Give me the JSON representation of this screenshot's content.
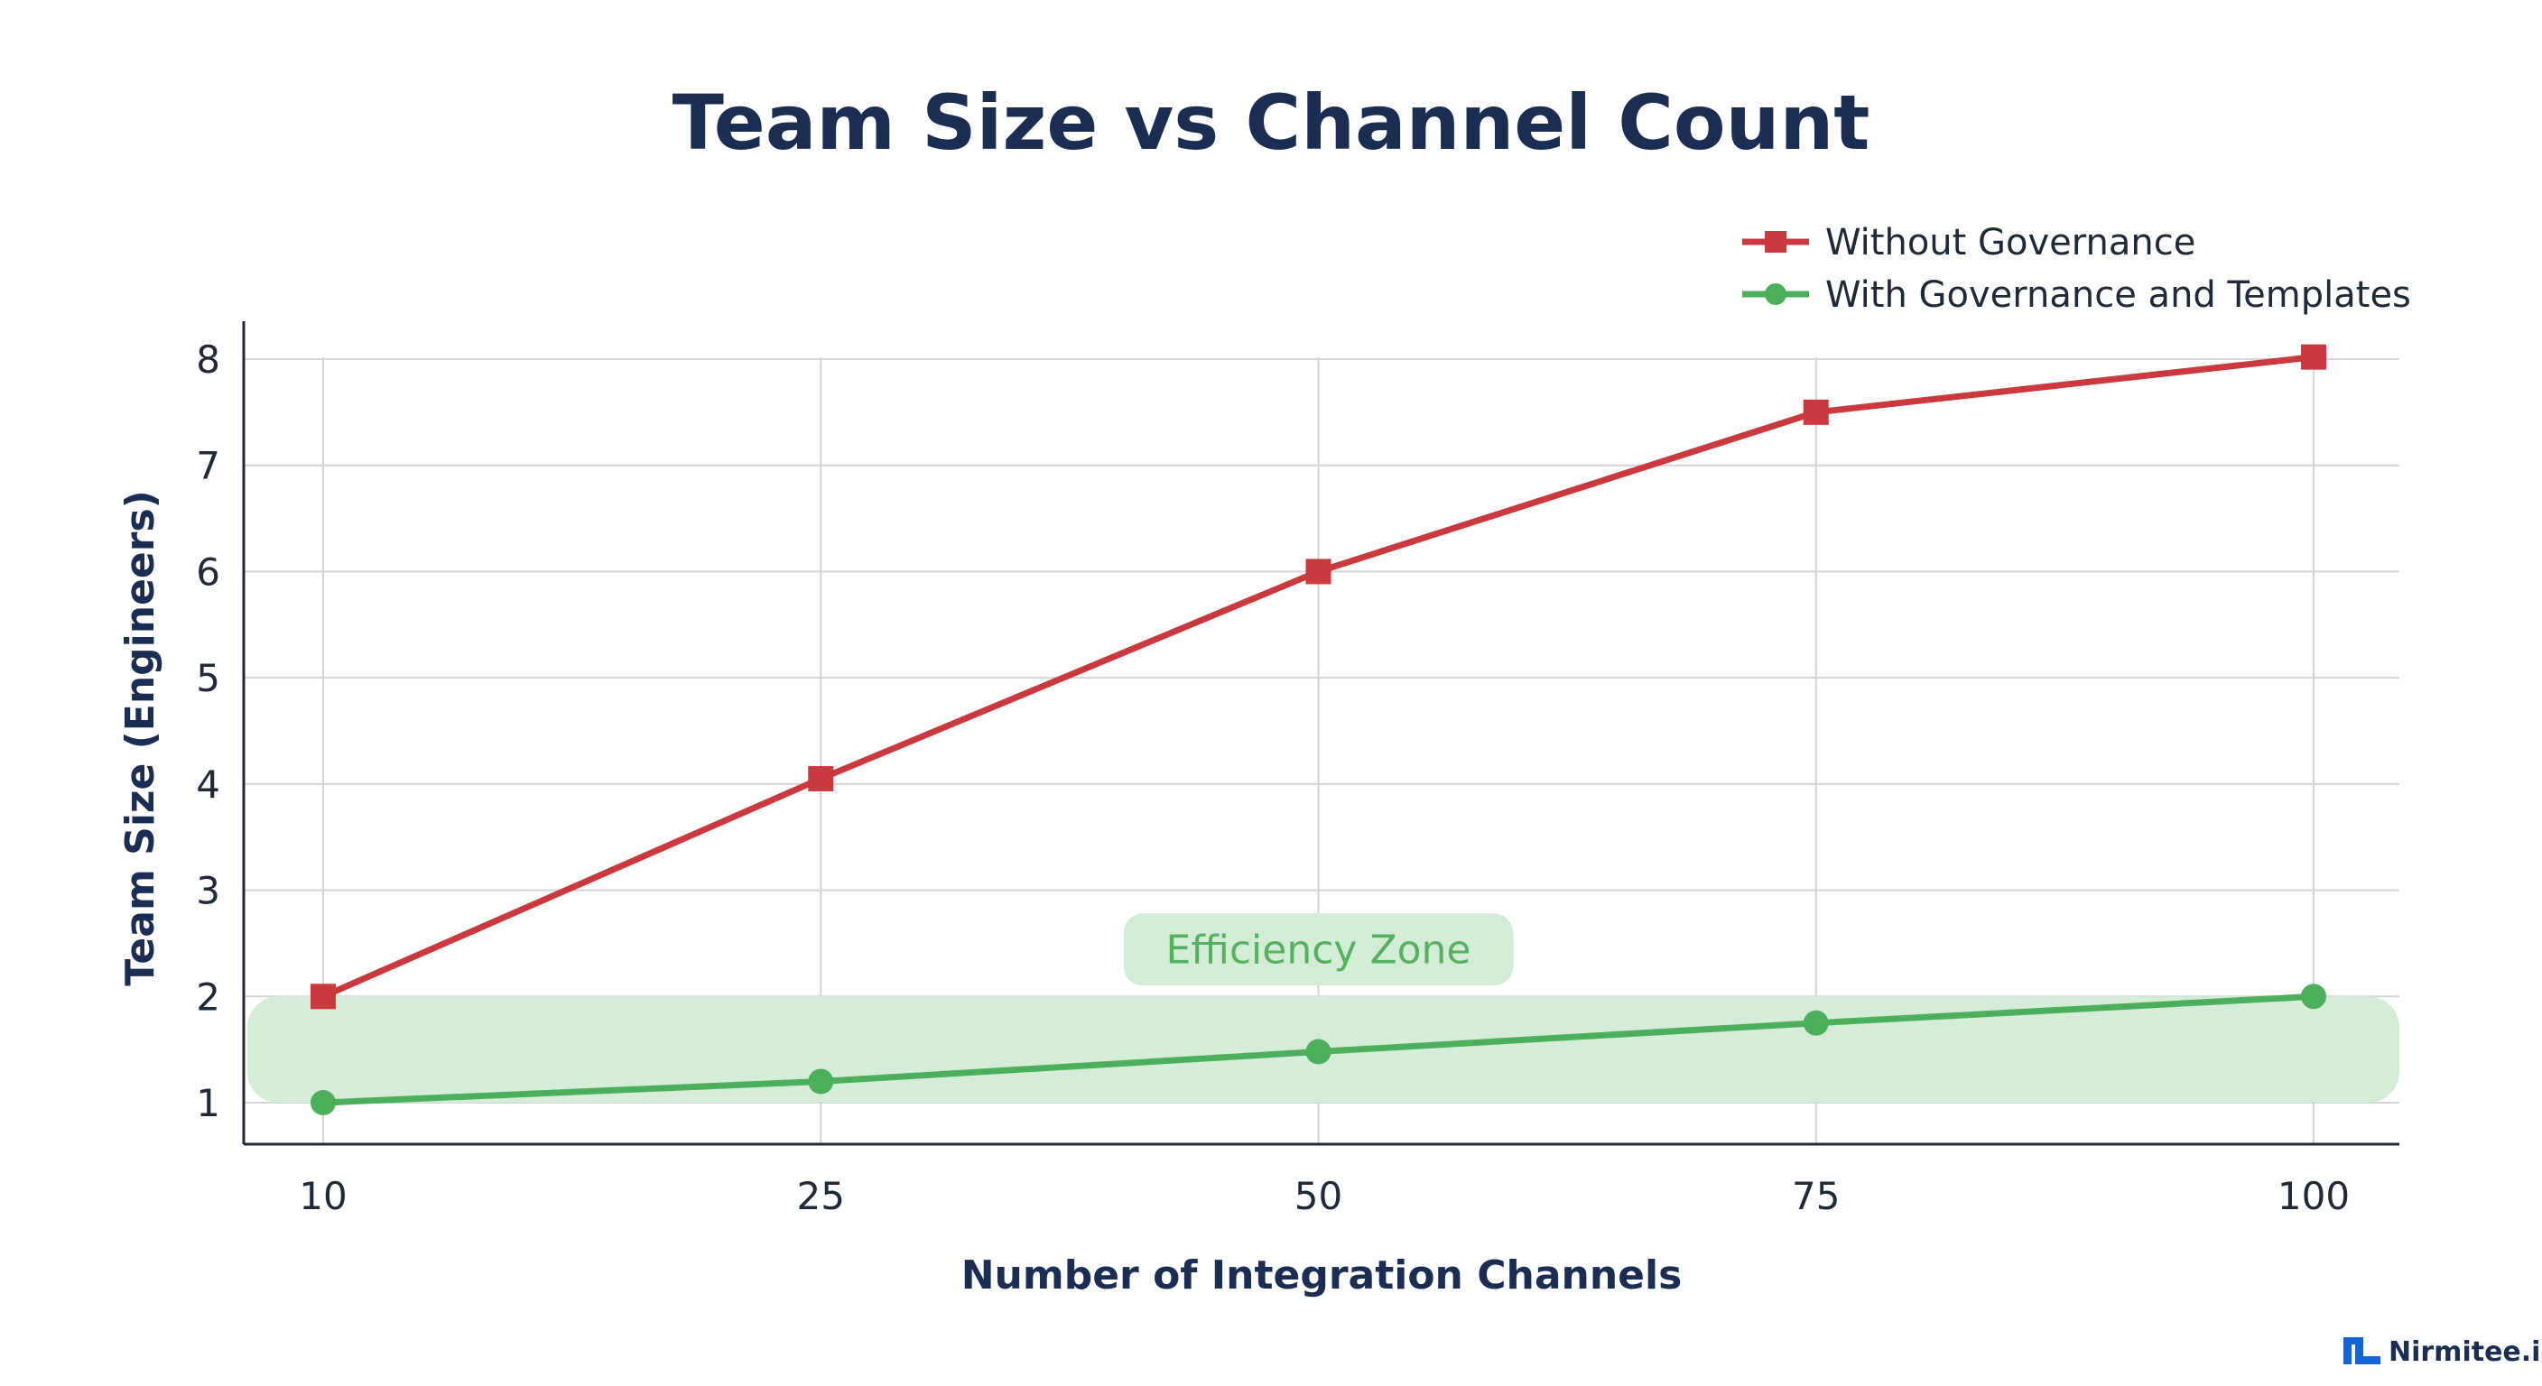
{
  "chart_data": {
    "type": "line",
    "title": "Team Size vs Channel Count",
    "xlabel": "Number of Integration Channels",
    "ylabel": "Team Size (Engineers)",
    "x": [
      10,
      25,
      50,
      75,
      100
    ],
    "x_tick_labels": [
      "10",
      "25",
      "50",
      "75",
      "100"
    ],
    "y_ticks": [
      1,
      2,
      3,
      4,
      5,
      6,
      7,
      8
    ],
    "ylim": [
      0.6,
      8.4
    ],
    "grid": true,
    "legend_position": "top-right",
    "series": [
      {
        "name": "Without Governance",
        "values": [
          2,
          4.05,
          6,
          7.5,
          8.02
        ],
        "color": "#c9393e",
        "marker": "square"
      },
      {
        "name": "With Governance and Templates",
        "values": [
          1,
          1.2,
          1.48,
          1.75,
          2
        ],
        "color": "#4caf5c",
        "marker": "circle"
      }
    ],
    "annotations": [
      {
        "label": "Efficiency Zone",
        "y_range": [
          1,
          2
        ],
        "color": "#d3ecd6",
        "label_color": "#55b060"
      }
    ]
  },
  "brand": {
    "name": "Nirmitee.io",
    "icon": "nirmitee-logo-icon",
    "color": "#1565d8"
  }
}
